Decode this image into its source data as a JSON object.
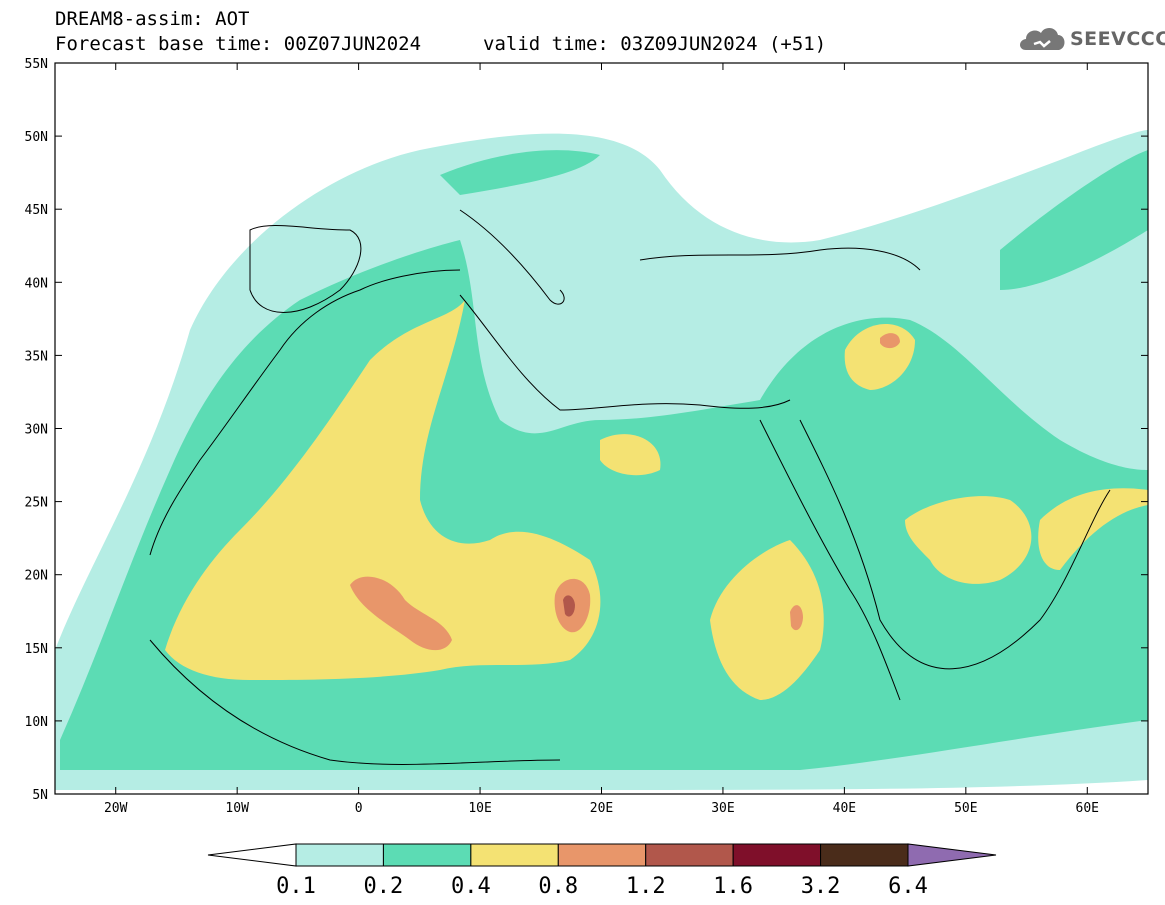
{
  "header": {
    "title": "DREAM8-assim: AOT",
    "base_time": "Forecast base time: 00Z07JUN2024",
    "valid_time": "valid time: 03Z09JUN2024 (+51)"
  },
  "logo": {
    "text": "SEEVCCC",
    "icon": "cloud-icon"
  },
  "map": {
    "lat_labels": [
      "55N",
      "50N",
      "45N",
      "40N",
      "35N",
      "30N",
      "25N",
      "20N",
      "15N",
      "10N",
      "5N"
    ],
    "lon_labels": [
      "20W",
      "10W",
      "0",
      "10E",
      "20E",
      "30E",
      "40E",
      "50E",
      "60E"
    ]
  },
  "colorbar": {
    "labels": [
      "0.1",
      "0.2",
      "0.4",
      "0.8",
      "1.2",
      "1.6",
      "3.2",
      "6.4"
    ],
    "colors": [
      "#ffffff",
      "#b5ede4",
      "#5cdcb4",
      "#f4e273",
      "#e8966a",
      "#b1574b",
      "#7f0f2a",
      "#4a2c1a",
      "#8f6bb0"
    ]
  },
  "palette": {
    "light": "#b5ede4",
    "teal": "#5cdcb4",
    "yellow": "#f4e273",
    "orange": "#e8966a",
    "red": "#b1574b"
  }
}
